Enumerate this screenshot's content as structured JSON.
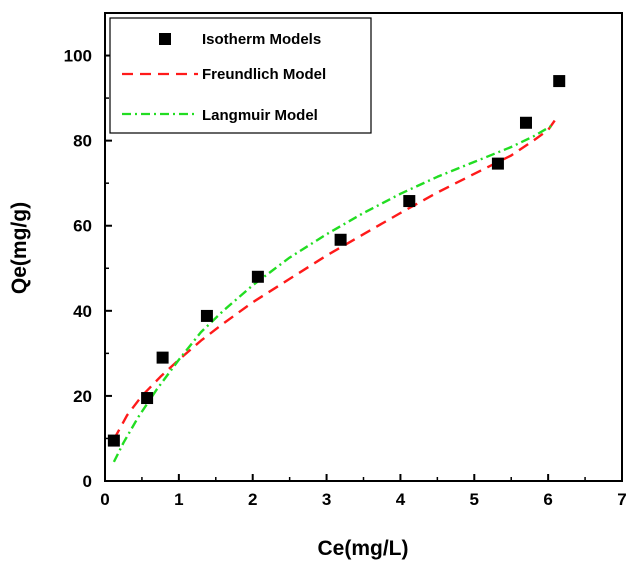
{
  "chart_data": {
    "type": "scatter",
    "xlabel": "Ce(mg/L)",
    "ylabel": "Qe(mg/g)",
    "xlim": [
      0,
      7
    ],
    "ylim": [
      0,
      110
    ],
    "xticks": [
      0,
      1,
      2,
      3,
      4,
      5,
      6,
      7
    ],
    "yticks": [
      0,
      20,
      40,
      60,
      80,
      100
    ],
    "grid": false,
    "legend_position": "top-left",
    "series": [
      {
        "name": "Isotherm Models",
        "style": "marker-square",
        "color": "#000000",
        "points": [
          [
            0.12,
            9.5
          ],
          [
            0.57,
            19.5
          ],
          [
            0.78,
            29.0
          ],
          [
            1.38,
            38.8
          ],
          [
            2.07,
            48.0
          ],
          [
            3.19,
            56.7
          ],
          [
            4.12,
            65.8
          ],
          [
            5.32,
            74.6
          ],
          [
            5.7,
            84.2
          ],
          [
            6.15,
            94.0
          ]
        ]
      },
      {
        "name": "Freundlich Model",
        "style": "dashed",
        "color": "#ff1a1a",
        "points": [
          [
            0.12,
            9.8
          ],
          [
            0.3,
            15.5
          ],
          [
            0.5,
            20.0
          ],
          [
            0.75,
            24.5
          ],
          [
            1.0,
            28.5
          ],
          [
            1.3,
            33.0
          ],
          [
            1.6,
            37.0
          ],
          [
            2.0,
            42.0
          ],
          [
            2.5,
            47.5
          ],
          [
            3.0,
            53.0
          ],
          [
            3.5,
            58.0
          ],
          [
            4.0,
            63.0
          ],
          [
            4.5,
            67.8
          ],
          [
            5.0,
            72.2
          ],
          [
            5.5,
            76.5
          ],
          [
            5.8,
            80.0
          ],
          [
            6.0,
            82.5
          ],
          [
            6.1,
            85.0
          ]
        ]
      },
      {
        "name": "Langmuir Model",
        "style": "dash-dot",
        "color": "#22dd22",
        "points": [
          [
            0.12,
            4.5
          ],
          [
            0.25,
            9.0
          ],
          [
            0.45,
            15.0
          ],
          [
            0.7,
            21.5
          ],
          [
            1.0,
            28.5
          ],
          [
            1.3,
            35.0
          ],
          [
            1.6,
            40.0
          ],
          [
            2.0,
            46.0
          ],
          [
            2.5,
            52.5
          ],
          [
            3.0,
            58.0
          ],
          [
            3.5,
            63.0
          ],
          [
            4.0,
            67.5
          ],
          [
            4.5,
            71.5
          ],
          [
            5.0,
            75.0
          ],
          [
            5.5,
            78.5
          ],
          [
            5.8,
            81.0
          ],
          [
            6.05,
            83.5
          ]
        ]
      }
    ]
  }
}
